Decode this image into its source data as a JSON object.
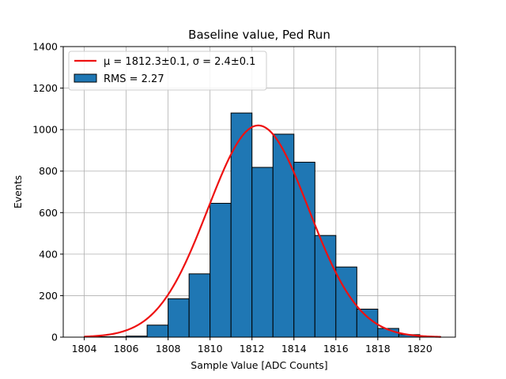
{
  "chart_data": {
    "type": "bar",
    "title": "Baseline value, Ped Run",
    "xlabel": "Sample Value [ADC Counts]",
    "ylabel": "Events",
    "xlim": [
      1803,
      1821.7
    ],
    "ylim": [
      0,
      1400
    ],
    "xticks": [
      1804,
      1806,
      1808,
      1810,
      1812,
      1814,
      1816,
      1818,
      1820
    ],
    "yticks": [
      0,
      200,
      400,
      600,
      800,
      1000,
      1200,
      1400
    ],
    "grid": true,
    "legend_position": "top-left",
    "bin_width": 1,
    "bins": [
      {
        "left": 1804,
        "count": 2
      },
      {
        "left": 1805,
        "count": 2
      },
      {
        "left": 1806,
        "count": 5
      },
      {
        "left": 1807,
        "count": 58
      },
      {
        "left": 1808,
        "count": 185
      },
      {
        "left": 1809,
        "count": 305
      },
      {
        "left": 1810,
        "count": 645
      },
      {
        "left": 1811,
        "count": 1080
      },
      {
        "left": 1812,
        "count": 818
      },
      {
        "left": 1813,
        "count": 978
      },
      {
        "left": 1814,
        "count": 843
      },
      {
        "left": 1815,
        "count": 490
      },
      {
        "left": 1816,
        "count": 338
      },
      {
        "left": 1817,
        "count": 135
      },
      {
        "left": 1818,
        "count": 42
      },
      {
        "left": 1819,
        "count": 12
      },
      {
        "left": 1820,
        "count": 2
      }
    ],
    "fit": {
      "mu": 1812.3,
      "sigma": 2.4,
      "amplitude": 1020,
      "x_range": [
        1804,
        1821
      ]
    },
    "legend": {
      "fit_label": "μ = 1812.3±0.1, σ = 2.4±0.1",
      "hist_label": "RMS = 2.27"
    },
    "colors": {
      "bar_fill": "#1f77b4",
      "bar_edge": "#000000",
      "fit_line": "#ee1111",
      "grid": "#b0b0b0"
    }
  }
}
